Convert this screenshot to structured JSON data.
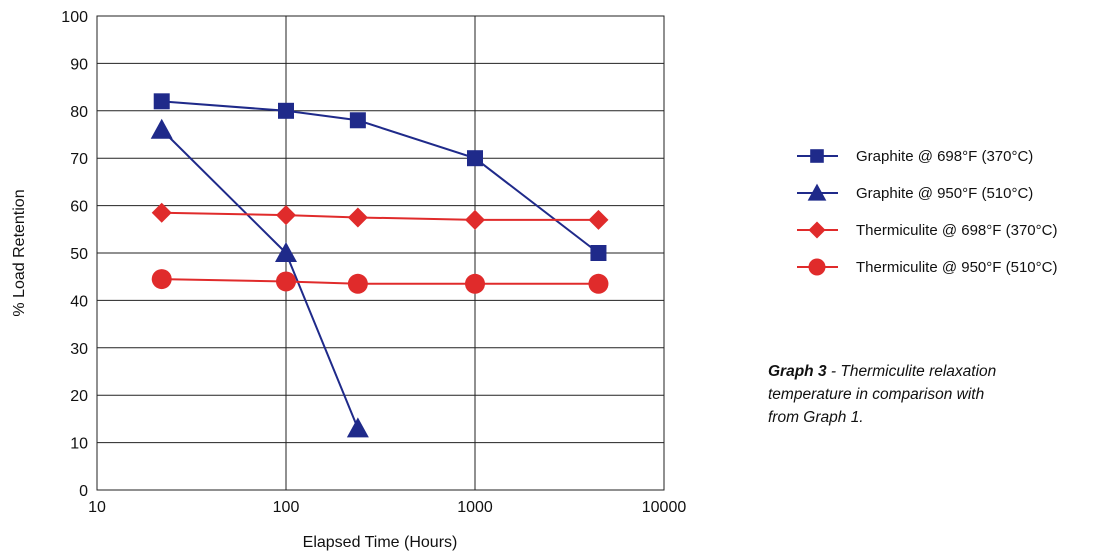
{
  "chart_data": {
    "type": "line",
    "xscale": "log",
    "xlim": [
      10,
      10000
    ],
    "ylim": [
      0,
      100
    ],
    "xticks": [
      10,
      100,
      1000,
      10000
    ],
    "yticks": [
      0,
      10,
      20,
      30,
      40,
      50,
      60,
      70,
      80,
      90,
      100
    ],
    "xlabel": "Elapsed Time (Hours)",
    "ylabel": "% Load Retention",
    "grid": true,
    "legend_position": "right",
    "series": [
      {
        "name": "Graphite @ 698°F (370°C)",
        "color": "#1f2a8a",
        "marker": "square",
        "x": [
          22,
          100,
          240,
          1000,
          4500
        ],
        "y": [
          82,
          80,
          78,
          70,
          50
        ]
      },
      {
        "name": "Graphite @ 950°F (510°C)",
        "color": "#1f2a8a",
        "marker": "triangle",
        "x": [
          22,
          100,
          240
        ],
        "y": [
          76,
          50,
          13
        ]
      },
      {
        "name": "Thermiculite @ 698°F (370°C)",
        "color": "#e02b2b",
        "marker": "diamond",
        "x": [
          22,
          100,
          240,
          1000,
          4500
        ],
        "y": [
          58.5,
          58,
          57.5,
          57,
          57
        ]
      },
      {
        "name": "Thermiculite @ 950°F (510°C)",
        "color": "#e02b2b",
        "marker": "circle",
        "x": [
          22,
          100,
          240,
          1000,
          4500
        ],
        "y": [
          44.5,
          44,
          43.5,
          43.5,
          43.5
        ]
      }
    ]
  },
  "caption": {
    "label": "Graph 3",
    "line1": " - Thermiculite relaxation",
    "line2": "temperature in comparison with",
    "line3": "from Graph 1."
  }
}
